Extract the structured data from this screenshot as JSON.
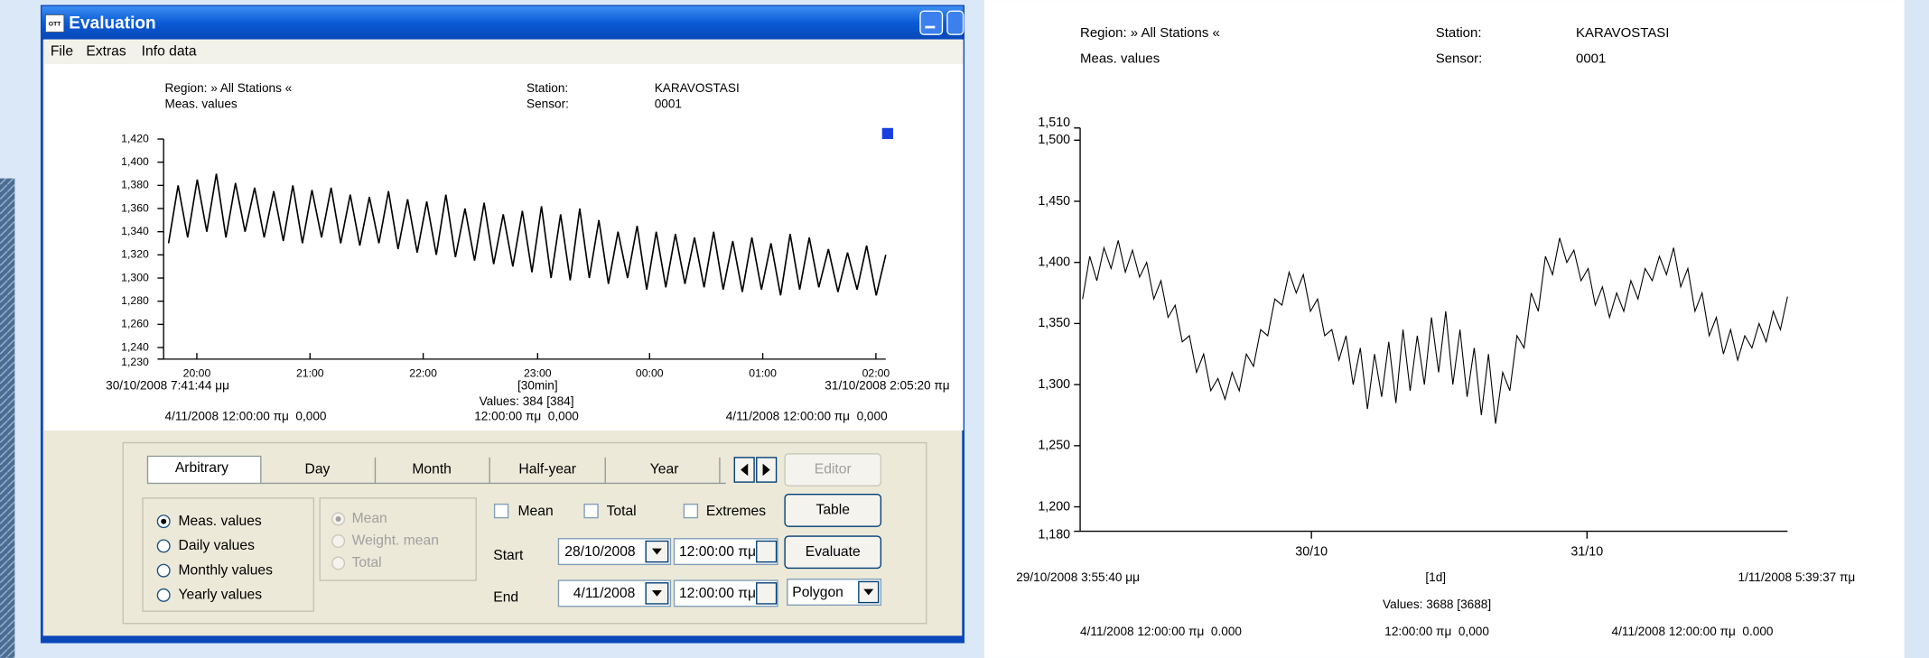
{
  "window": {
    "app_icon": "OTT",
    "title": "Evaluation",
    "menu": [
      "File",
      "Extras",
      "Info data"
    ],
    "tabs": [
      "Arbitrary",
      "Day",
      "Month",
      "Half-year",
      "Year"
    ],
    "buttons": {
      "editor": "Editor",
      "table": "Table",
      "evaluate": "Evaluate"
    },
    "value_types": [
      "Meas. values",
      "Daily values",
      "Monthly values",
      "Yearly values"
    ],
    "mean_options": [
      "Mean",
      "Weight. mean",
      "Total"
    ],
    "checkboxes": [
      "Mean",
      "Total",
      "Extremes"
    ],
    "start": {
      "label": "Start",
      "date": "28/10/2008",
      "time": "12:00:00 πμ"
    },
    "end": {
      "label": "End",
      "date": "4/11/2008",
      "time": "12:00:00 πμ"
    },
    "chart_style": "Polygon"
  },
  "chart_data": [
    {
      "type": "line",
      "region_label": "Region: » All Stations «",
      "series_label": "Meas. values",
      "station_label": "Station:",
      "station": "KARAVOSTASI",
      "sensor_label": "Sensor:",
      "sensor": "0001",
      "x_tick_labels": [
        "20:00",
        "21:00",
        "22:00",
        "23:00",
        "00:00",
        "01:00",
        "02:00"
      ],
      "start_label": "30/10/2008 7:41:44 μμ",
      "end_label": "31/10/2008 2:05:20 πμ",
      "interval_label": "[30min]",
      "count_label": "Values: 384 [384]",
      "footer_left": "4/11/2008 12:00:00 πμ  0,000",
      "footer_center": "12:00:00 πμ  0,000",
      "footer_right": "4/11/2008 12:00:00 πμ  0,000",
      "ylim": [
        1230,
        1420
      ],
      "yticks": [
        {
          "value": 1230,
          "label": "1,230"
        },
        {
          "value": 1240,
          "label": "1,240"
        },
        {
          "value": 1260,
          "label": "1,260"
        },
        {
          "value": 1280,
          "label": "1,280"
        },
        {
          "value": 1300,
          "label": "1,300"
        },
        {
          "value": 1320,
          "label": "1,320"
        },
        {
          "value": 1340,
          "label": "1,340"
        },
        {
          "value": 1360,
          "label": "1,360"
        },
        {
          "value": 1380,
          "label": "1,380"
        },
        {
          "value": 1400,
          "label": "1,400"
        },
        {
          "value": 1420,
          "label": "1,420"
        }
      ],
      "marker_color": "#1a3fe0",
      "series": [
        {
          "color": "#000000",
          "values": [
            1330,
            1380,
            1335,
            1385,
            1340,
            1390,
            1335,
            1382,
            1340,
            1378,
            1335,
            1375,
            1332,
            1380,
            1330,
            1376,
            1335,
            1378,
            1330,
            1372,
            1328,
            1370,
            1330,
            1375,
            1325,
            1368,
            1322,
            1366,
            1320,
            1372,
            1318,
            1360,
            1315,
            1365,
            1312,
            1355,
            1310,
            1358,
            1305,
            1362,
            1300,
            1355,
            1298,
            1360,
            1300,
            1350,
            1295,
            1340,
            1300,
            1345,
            1290,
            1340,
            1292,
            1338,
            1295,
            1335,
            1292,
            1340,
            1290,
            1332,
            1288,
            1335,
            1290,
            1330,
            1285,
            1338,
            1290,
            1335,
            1292,
            1325,
            1288,
            1322,
            1290,
            1328,
            1285,
            1320
          ]
        }
      ]
    },
    {
      "type": "line",
      "region_label": "Region: » All Stations «",
      "series_label": "Meas. values",
      "station_label": "Station:",
      "station": "KARAVOSTASI",
      "sensor_label": "Sensor:",
      "sensor": "0001",
      "x_tick_labels": [
        "30/10",
        "31/10"
      ],
      "start_label": "29/10/2008 3:55:40 μμ",
      "end_label": "1/11/2008 5:39:37 πμ",
      "interval_label": "[1d]",
      "count_label": "Values: 3688 [3688]",
      "footer_left": "4/11/2008 12:00:00 πμ  0.000",
      "footer_center": "12:00:00 πμ  0,000",
      "footer_right": "4/11/2008 12:00:00 πμ  0.000",
      "ylim": [
        1180,
        1510
      ],
      "yticks": [
        {
          "value": 1180,
          "label": "1,180"
        },
        {
          "value": 1200,
          "label": "1,200"
        },
        {
          "value": 1250,
          "label": "1,250"
        },
        {
          "value": 1300,
          "label": "1,300"
        },
        {
          "value": 1350,
          "label": "1,350"
        },
        {
          "value": 1400,
          "label": "1,400"
        },
        {
          "value": 1450,
          "label": "1,450"
        },
        {
          "value": 1500,
          "label": "1,500"
        },
        {
          "value": 1510,
          "label": "1,510"
        }
      ],
      "series": [
        {
          "color": "#000000",
          "values": [
            1370,
            1405,
            1385,
            1412,
            1395,
            1418,
            1392,
            1410,
            1388,
            1400,
            1370,
            1385,
            1355,
            1365,
            1335,
            1340,
            1310,
            1325,
            1295,
            1305,
            1288,
            1310,
            1295,
            1325,
            1315,
            1345,
            1340,
            1370,
            1365,
            1392,
            1375,
            1390,
            1360,
            1370,
            1340,
            1345,
            1320,
            1340,
            1300,
            1330,
            1280,
            1325,
            1290,
            1335,
            1285,
            1345,
            1295,
            1340,
            1300,
            1355,
            1310,
            1360,
            1300,
            1345,
            1290,
            1330,
            1275,
            1325,
            1268,
            1310,
            1295,
            1340,
            1330,
            1375,
            1360,
            1405,
            1390,
            1420,
            1400,
            1410,
            1385,
            1395,
            1365,
            1380,
            1355,
            1375,
            1360,
            1385,
            1370,
            1395,
            1385,
            1405,
            1390,
            1412,
            1380,
            1395,
            1360,
            1375,
            1340,
            1355,
            1325,
            1345,
            1320,
            1340,
            1330,
            1350,
            1335,
            1360,
            1345,
            1372
          ]
        }
      ]
    }
  ]
}
